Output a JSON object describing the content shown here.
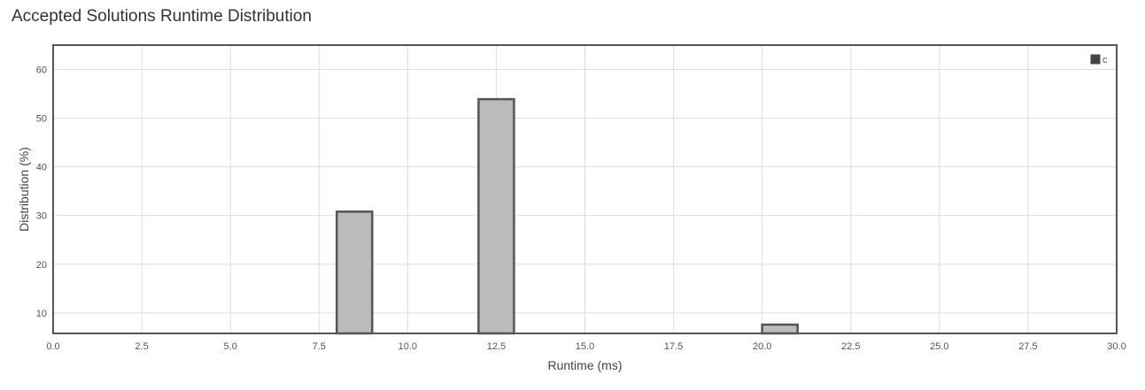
{
  "page": {
    "title": "Accepted Solutions Runtime Distribution"
  },
  "chart_data": {
    "type": "bar",
    "title": "Accepted Solutions Runtime Distribution",
    "xlabel": "Runtime (ms)",
    "ylabel": "Distribution (%)",
    "xlim": [
      0,
      30
    ],
    "ylim": [
      5.8,
      65
    ],
    "x_ticks": [
      0,
      2.5,
      5,
      7.5,
      10,
      12.5,
      15,
      17.5,
      20,
      22.5,
      25,
      27.5,
      30
    ],
    "x_tick_labels": [
      "0.0",
      "2.5",
      "5.0",
      "7.5",
      "10.0",
      "12.5",
      "15.0",
      "17.5",
      "20.0",
      "22.5",
      "25.0",
      "27.5",
      "30.0"
    ],
    "y_ticks": [
      10,
      20,
      30,
      40,
      50,
      60
    ],
    "y_tick_labels": [
      "10",
      "20",
      "30",
      "40",
      "50",
      "60"
    ],
    "bar_width": 1,
    "series": [
      {
        "name": "c",
        "bars": [
          {
            "x_start": 8,
            "x_end": 9,
            "value": 30.8
          },
          {
            "x_start": 12,
            "x_end": 13,
            "value": 53.9
          },
          {
            "x_start": 20,
            "x_end": 21,
            "value": 7.6
          }
        ]
      }
    ],
    "grid": true,
    "legend_position": "top-right",
    "colors": {
      "bar_fill": "#bbbbbb",
      "bar_stroke": "#555555",
      "grid": "#dddddd",
      "frame": "#555555",
      "legend_swatch": "#444444"
    }
  }
}
